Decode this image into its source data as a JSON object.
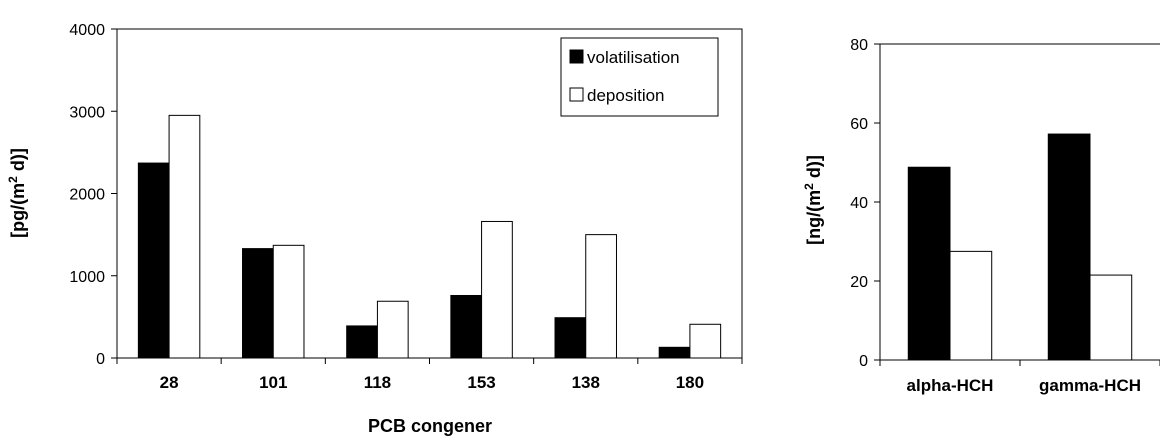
{
  "chart_data": [
    {
      "type": "bar",
      "categories": [
        "28",
        "101",
        "118",
        "153",
        "138",
        "180"
      ],
      "series": [
        {
          "name": "volatilisation",
          "values": [
            2370,
            1330,
            390,
            760,
            490,
            130
          ],
          "color": "#000000"
        },
        {
          "name": "deposition",
          "values": [
            2950,
            1370,
            690,
            1660,
            1500,
            410
          ],
          "color": "#ffffff"
        }
      ],
      "xlabel": "PCB congener",
      "ylabel_main": "[pg/(m",
      "ylabel_sup": "2",
      "ylabel_tail": " d)]",
      "ylim": [
        0,
        4000
      ],
      "yticks": [
        "0",
        "1000",
        "2000",
        "3000",
        "4000"
      ],
      "legend_position": "top-right",
      "grid": false
    },
    {
      "type": "bar",
      "categories": [
        "alpha-HCH",
        "gamma-HCH"
      ],
      "series": [
        {
          "values": [
            48.8,
            57.2
          ],
          "color": "#000000"
        },
        {
          "values": [
            27.5,
            21.5
          ],
          "color": "#ffffff"
        }
      ],
      "ylabel_main": "[ng/(m",
      "ylabel_sup": "2",
      "ylabel_tail": " d)]",
      "ylim": [
        0,
        80
      ],
      "yticks": [
        "0",
        "20",
        "40",
        "60",
        "80"
      ],
      "grid": false
    }
  ]
}
